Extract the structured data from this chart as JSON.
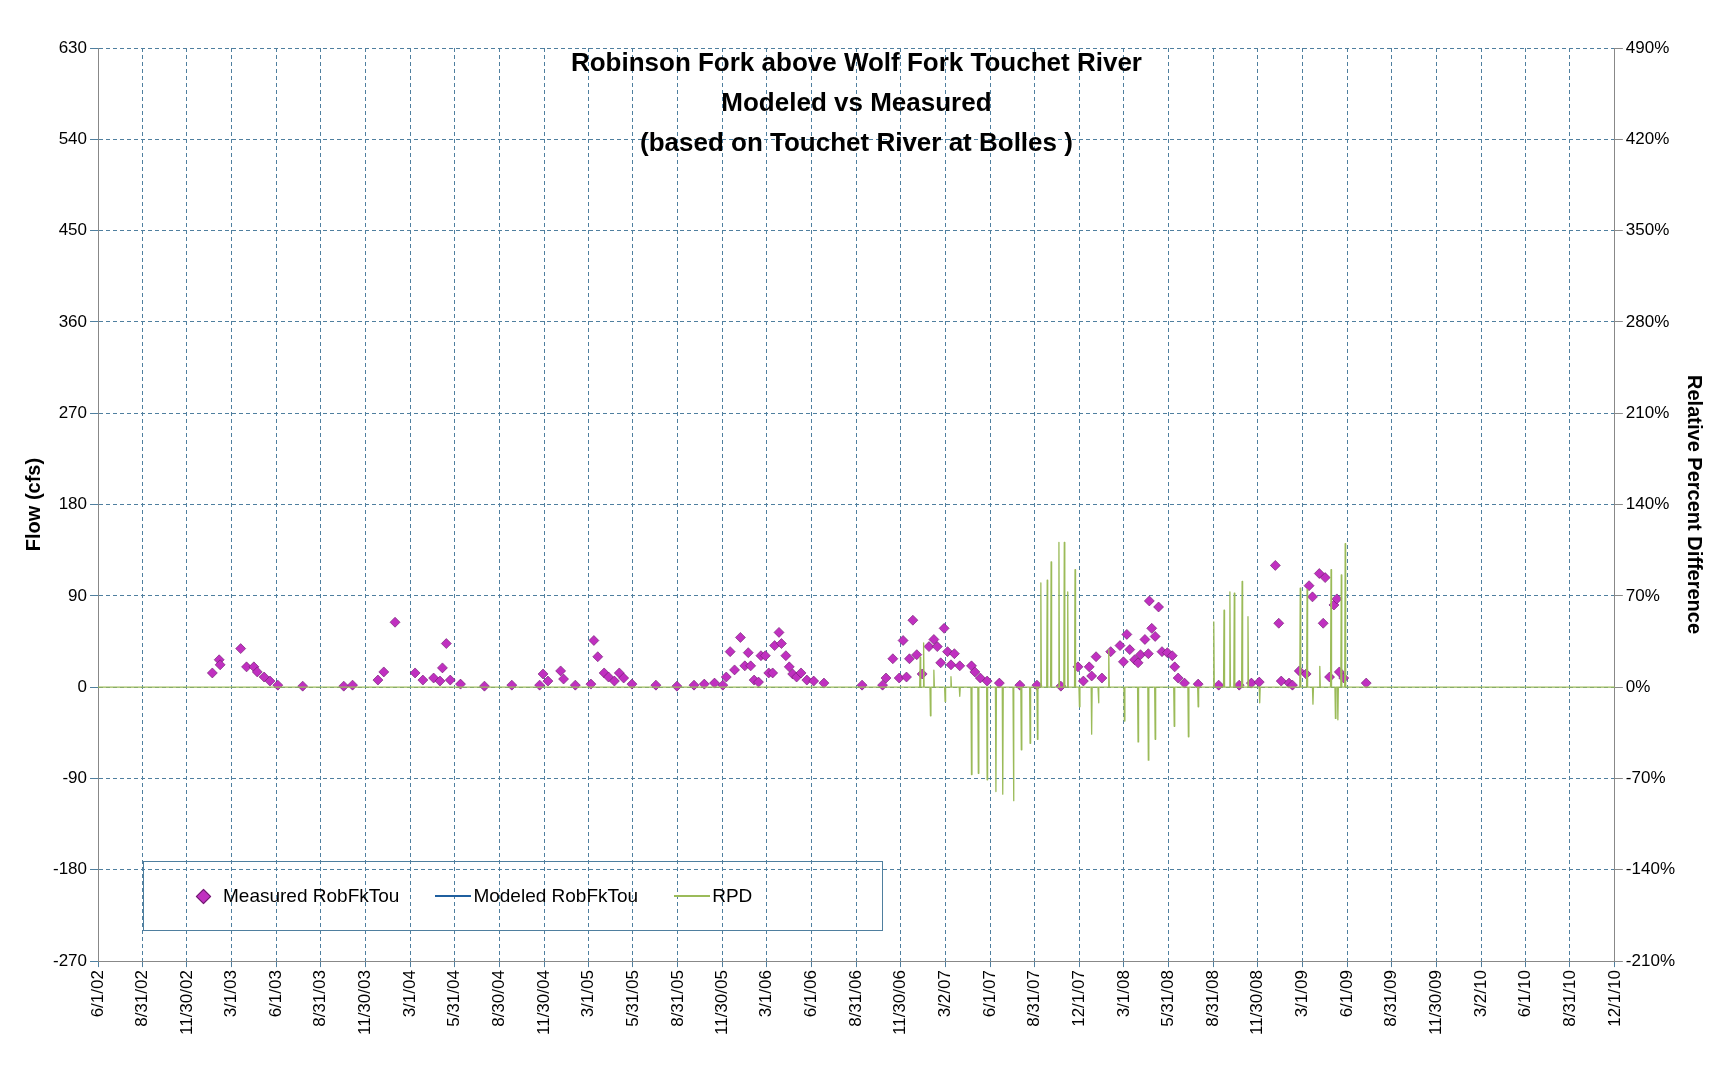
{
  "chart_data": {
    "type": "scatter",
    "title": "Robinson Fork above Wolf Fork Touchet River\nModeled vs Measured\n(based on Touchet River at Bolles )",
    "ylabel": "Flow (cfs)",
    "y2label": "Relative Percent Difference",
    "legend": "bottom left",
    "grid": true,
    "xlim": [
      "2002-06-01",
      "2010-12-01"
    ],
    "xticks": [
      {
        "value": "2002-06-01",
        "label": "6/1/02"
      },
      {
        "value": "2002-08-31",
        "label": "8/31/02"
      },
      {
        "value": "2002-11-30",
        "label": "11/30/02"
      },
      {
        "value": "2003-03-01",
        "label": "3/1/03"
      },
      {
        "value": "2003-06-01",
        "label": "6/1/03"
      },
      {
        "value": "2003-08-31",
        "label": "8/31/03"
      },
      {
        "value": "2003-11-30",
        "label": "11/30/03"
      },
      {
        "value": "2004-03-01",
        "label": "3/1/04"
      },
      {
        "value": "2004-05-31",
        "label": "5/31/04"
      },
      {
        "value": "2004-08-30",
        "label": "8/30/04"
      },
      {
        "value": "2004-11-30",
        "label": "11/30/04"
      },
      {
        "value": "2005-03-01",
        "label": "3/1/05"
      },
      {
        "value": "2005-05-31",
        "label": "5/31/05"
      },
      {
        "value": "2005-08-31",
        "label": "8/31/05"
      },
      {
        "value": "2005-11-30",
        "label": "11/30/05"
      },
      {
        "value": "2006-03-01",
        "label": "3/1/06"
      },
      {
        "value": "2006-06-01",
        "label": "6/1/06"
      },
      {
        "value": "2006-08-31",
        "label": "8/31/06"
      },
      {
        "value": "2006-11-30",
        "label": "11/30/06"
      },
      {
        "value": "2007-03-02",
        "label": "3/2/07"
      },
      {
        "value": "2007-06-01",
        "label": "6/1/07"
      },
      {
        "value": "2007-08-31",
        "label": "8/31/07"
      },
      {
        "value": "2007-12-01",
        "label": "12/1/07"
      },
      {
        "value": "2008-03-01",
        "label": "3/1/08"
      },
      {
        "value": "2008-05-31",
        "label": "5/31/08"
      },
      {
        "value": "2008-08-31",
        "label": "8/31/08"
      },
      {
        "value": "2008-11-30",
        "label": "11/30/08"
      },
      {
        "value": "2009-03-01",
        "label": "3/1/09"
      },
      {
        "value": "2009-06-01",
        "label": "6/1/09"
      },
      {
        "value": "2009-08-31",
        "label": "8/31/09"
      },
      {
        "value": "2009-11-30",
        "label": "11/30/09"
      },
      {
        "value": "2010-03-02",
        "label": "3/2/10"
      },
      {
        "value": "2010-06-01",
        "label": "6/1/10"
      },
      {
        "value": "2010-08-31",
        "label": "8/31/10"
      },
      {
        "value": "2010-12-01",
        "label": "12/1/10"
      }
    ],
    "ylim": [
      -270,
      630
    ],
    "yticks": [
      -270,
      -180,
      -90,
      0,
      90,
      180,
      270,
      360,
      450,
      540,
      630
    ],
    "y2lim": [
      -210,
      490
    ],
    "y2ticks": [
      {
        "value": -210,
        "label": "-210%"
      },
      {
        "value": -140,
        "label": "-140%"
      },
      {
        "value": -70,
        "label": "-70%"
      },
      {
        "value": 0,
        "label": "0%"
      },
      {
        "value": 70,
        "label": "70%"
      },
      {
        "value": 140,
        "label": "140%"
      },
      {
        "value": 210,
        "label": "210%"
      },
      {
        "value": 280,
        "label": "280%"
      },
      {
        "value": 350,
        "label": "350%"
      },
      {
        "value": 420,
        "label": "420%"
      },
      {
        "value": 490,
        "label": "490%"
      }
    ],
    "series": [
      {
        "name": "Measured RobFkTou",
        "type": "scatter",
        "marker": "diamond",
        "color": "#c030c0",
        "x": [
          "2003-01-21",
          "2003-02-04",
          "2003-02-06",
          "2003-03-20",
          "2003-04-01",
          "2003-04-16",
          "2003-04-23",
          "2003-05-07",
          "2003-05-19",
          "2003-06-04",
          "2003-07-25",
          "2003-10-17",
          "2003-11-04",
          "2003-12-26",
          "2004-01-07",
          "2004-01-30",
          "2004-03-11",
          "2004-03-27",
          "2004-04-18",
          "2004-05-01",
          "2004-05-06",
          "2004-05-14",
          "2004-05-22",
          "2004-06-12",
          "2004-07-31",
          "2004-09-25",
          "2004-11-21",
          "2004-11-28",
          "2004-12-08",
          "2005-01-03",
          "2005-01-09",
          "2005-02-02",
          "2005-03-06",
          "2005-03-12",
          "2005-03-20",
          "2005-04-02",
          "2005-04-11",
          "2005-04-23",
          "2005-05-03",
          "2005-05-12",
          "2005-05-29",
          "2005-07-17",
          "2005-08-29",
          "2005-10-03",
          "2005-10-24",
          "2005-11-14",
          "2005-12-01",
          "2005-12-08",
          "2005-12-16",
          "2005-12-25",
          "2006-01-06",
          "2006-01-15",
          "2006-01-22",
          "2006-01-27",
          "2006-02-03",
          "2006-02-12",
          "2006-02-17",
          "2006-02-26",
          "2006-03-05",
          "2006-03-13",
          "2006-03-17",
          "2006-03-26",
          "2006-03-31",
          "2006-04-09",
          "2006-04-16",
          "2006-04-23",
          "2006-05-01",
          "2006-05-10",
          "2006-05-22",
          "2006-06-05",
          "2006-06-26",
          "2006-09-12",
          "2006-10-24",
          "2006-10-31",
          "2006-11-14",
          "2006-11-27",
          "2006-12-05",
          "2006-12-12",
          "2006-12-18",
          "2006-12-25",
          "2007-01-02",
          "2007-01-13",
          "2007-01-27",
          "2007-02-06",
          "2007-02-13",
          "2007-02-20",
          "2007-02-27",
          "2007-03-06",
          "2007-03-13",
          "2007-03-20",
          "2007-03-31",
          "2007-04-24",
          "2007-05-01",
          "2007-05-12",
          "2007-05-26",
          "2007-06-20",
          "2007-08-01",
          "2007-09-05",
          "2007-10-24",
          "2007-11-28",
          "2007-12-09",
          "2007-12-21",
          "2007-12-26",
          "2008-01-04",
          "2008-01-16",
          "2008-02-03",
          "2008-02-22",
          "2008-02-29",
          "2008-03-07",
          "2008-03-13",
          "2008-03-23",
          "2008-03-30",
          "2008-04-04",
          "2008-04-13",
          "2008-04-20",
          "2008-04-22",
          "2008-04-27",
          "2008-05-04",
          "2008-05-11",
          "2008-05-18",
          "2008-05-29",
          "2008-06-08",
          "2008-06-13",
          "2008-06-20",
          "2008-07-03",
          "2008-07-31",
          "2008-09-11",
          "2008-10-23",
          "2008-11-17",
          "2008-12-03",
          "2009-01-05",
          "2009-01-12",
          "2009-01-17",
          "2009-02-02",
          "2009-02-09",
          "2009-02-23",
          "2009-03-09",
          "2009-03-15",
          "2009-03-22",
          "2009-04-05",
          "2009-04-13",
          "2009-04-17",
          "2009-04-26",
          "2009-05-05",
          "2009-05-11",
          "2009-05-16",
          "2009-05-25",
          "2009-07-10"
        ],
        "values": [
          14,
          27,
          22,
          38,
          20,
          20,
          15,
          10,
          6,
          2,
          1,
          1,
          2,
          7,
          15,
          64,
          14,
          7,
          9,
          6,
          19,
          43,
          7,
          3,
          1,
          2,
          2,
          13,
          6,
          16,
          8,
          2,
          3,
          46,
          30,
          14,
          10,
          6,
          14,
          9,
          3,
          2,
          1,
          2,
          3,
          4,
          2,
          10,
          35,
          17,
          49,
          21,
          34,
          21,
          7,
          5,
          31,
          31,
          14,
          14,
          41,
          54,
          43,
          31,
          20,
          13,
          10,
          14,
          7,
          6,
          4,
          2,
          2,
          9,
          28,
          9,
          46,
          10,
          28,
          66,
          32,
          13,
          40,
          47,
          40,
          24,
          58,
          35,
          22,
          33,
          21,
          21,
          15,
          9,
          6,
          4,
          2,
          2,
          1,
          20,
          6,
          20,
          11,
          30,
          9,
          35,
          41,
          25,
          52,
          37,
          27,
          24,
          32,
          47,
          33,
          85,
          58,
          50,
          79,
          35,
          34,
          31,
          20,
          9,
          4,
          3,
          2,
          2,
          4,
          5,
          120,
          63,
          6,
          4,
          2,
          16,
          13,
          100,
          89,
          112,
          63,
          108,
          10,
          81,
          87,
          15,
          9,
          4
        ]
      },
      {
        "name": "Modeled RobFkTou",
        "type": "line",
        "color": "#1f5f9f"
      },
      {
        "name": "RPD",
        "type": "line",
        "axis": "y2",
        "color": "#9bbb59",
        "x": [
          "2002-06-01",
          "2007-01-08",
          "2007-01-09",
          "2007-01-10",
          "2007-01-15",
          "2007-01-16",
          "2007-01-17",
          "2007-01-29",
          "2007-01-30",
          "2007-01-31",
          "2007-02-05",
          "2007-02-06",
          "2007-02-07",
          "2007-02-28",
          "2007-03-01",
          "2007-03-02",
          "2007-03-12",
          "2007-03-13",
          "2007-03-14",
          "2007-03-30",
          "2007-03-31",
          "2007-04-01",
          "2007-04-23",
          "2007-04-24",
          "2007-04-25",
          "2007-05-07",
          "2007-05-08",
          "2007-05-09",
          "2007-05-25",
          "2007-05-26",
          "2007-05-27",
          "2007-06-12",
          "2007-06-13",
          "2007-06-14",
          "2007-06-26",
          "2007-06-27",
          "2007-06-28",
          "2007-07-18",
          "2007-07-19",
          "2007-07-20",
          "2007-08-03",
          "2007-08-04",
          "2007-08-05",
          "2007-08-21",
          "2007-08-22",
          "2007-08-23",
          "2007-09-05",
          "2007-09-06",
          "2007-09-07",
          "2007-09-12",
          "2007-09-13",
          "2007-09-14",
          "2007-09-25",
          "2007-09-26",
          "2007-09-27",
          "2007-10-03",
          "2007-10-04",
          "2007-10-05",
          "2007-10-19",
          "2007-10-20",
          "2007-10-21",
          "2007-10-30",
          "2007-10-31",
          "2007-11-01",
          "2007-11-06",
          "2007-11-07",
          "2007-11-08",
          "2007-11-21",
          "2007-11-22",
          "2007-11-23",
          "2007-11-30",
          "2007-12-01",
          "2007-12-02",
          "2007-12-25",
          "2007-12-26",
          "2007-12-27",
          "2008-01-08",
          "2008-01-09",
          "2008-01-10",
          "2008-01-29",
          "2008-01-30",
          "2008-01-31",
          "2008-03-01",
          "2008-03-02",
          "2008-03-03",
          "2008-03-29",
          "2008-03-30",
          "2008-03-31",
          "2008-04-19",
          "2008-04-20",
          "2008-04-21",
          "2008-05-03",
          "2008-05-04",
          "2008-05-05",
          "2008-06-11",
          "2008-06-12",
          "2008-06-13",
          "2008-07-10",
          "2008-07-11",
          "2008-07-12",
          "2008-07-30",
          "2008-07-31",
          "2008-08-01",
          "2008-08-31",
          "2008-09-01",
          "2008-09-02",
          "2008-09-21",
          "2008-09-22",
          "2008-09-23",
          "2008-10-03",
          "2008-10-04",
          "2008-10-05",
          "2008-10-12",
          "2008-10-13",
          "2008-10-14",
          "2008-10-28",
          "2008-10-29",
          "2008-10-30",
          "2008-11-09",
          "2008-11-10",
          "2008-11-11",
          "2008-12-03",
          "2008-12-04",
          "2008-12-05",
          "2009-02-24",
          "2009-02-25",
          "2009-02-26",
          "2009-03-10",
          "2009-03-11",
          "2009-03-12",
          "2009-03-22",
          "2009-03-23",
          "2009-03-24",
          "2009-04-05",
          "2009-04-06",
          "2009-04-07",
          "2009-04-28",
          "2009-04-29",
          "2009-04-30",
          "2009-05-07",
          "2009-05-08",
          "2009-05-09",
          "2009-05-12",
          "2009-05-13",
          "2009-05-14",
          "2009-05-19",
          "2009-05-20",
          "2009-05-21",
          "2009-05-27",
          "2009-05-28",
          "2009-05-29",
          "2010-12-01"
        ],
        "values": [
          0,
          0,
          23,
          0,
          0,
          34,
          0,
          0,
          -22,
          0,
          0,
          13,
          0,
          0,
          -11,
          0,
          0,
          8,
          0,
          0,
          -7,
          0,
          0,
          -67,
          0,
          0,
          -66,
          0,
          0,
          -71,
          0,
          0,
          -80,
          0,
          0,
          -82,
          0,
          0,
          -87,
          0,
          0,
          -48,
          0,
          0,
          -43,
          0,
          0,
          -40,
          0,
          0,
          80,
          0,
          0,
          82,
          0,
          0,
          96,
          0,
          0,
          111,
          0,
          0,
          111,
          0,
          0,
          73,
          0,
          0,
          90,
          0,
          0,
          -15,
          0,
          0,
          -36,
          0,
          0,
          -12,
          0,
          0,
          29,
          0,
          0,
          -26,
          0,
          0,
          -42,
          0,
          0,
          -56,
          0,
          0,
          -40,
          0,
          0,
          -30,
          0,
          0,
          -38,
          0,
          0,
          -15,
          0,
          0,
          50,
          0,
          0,
          59,
          0,
          0,
          73,
          0,
          0,
          72,
          0,
          0,
          81,
          0,
          0,
          54,
          0,
          0,
          -12,
          0,
          0,
          76,
          0,
          0,
          75,
          0,
          0,
          -13,
          0,
          0,
          16,
          0,
          0,
          90,
          0,
          0,
          -24,
          0,
          0,
          -25,
          0,
          0,
          86,
          0,
          0,
          110,
          0,
          0
        ]
      }
    ]
  }
}
